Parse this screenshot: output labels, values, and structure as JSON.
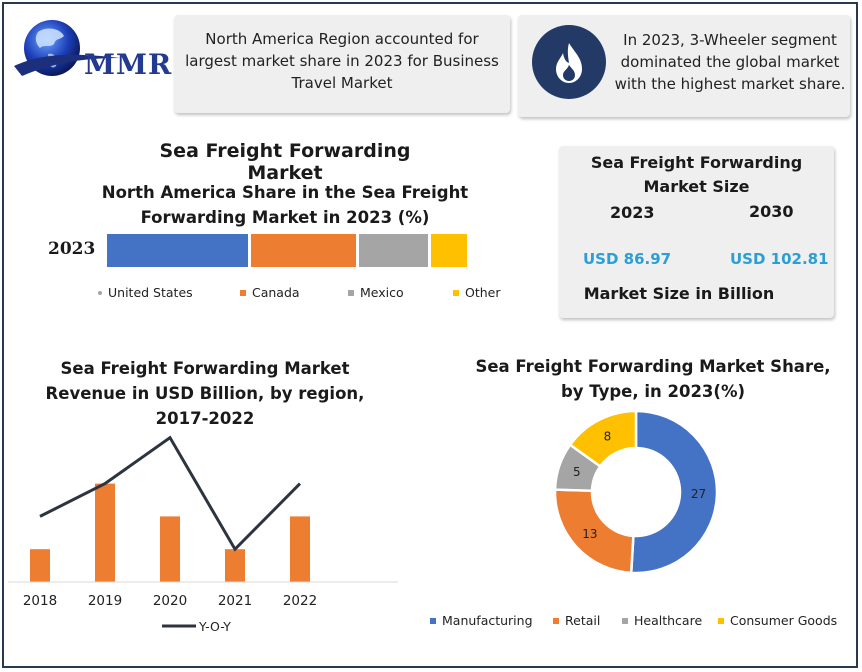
{
  "logo": {
    "text": "MMR"
  },
  "cards": {
    "north_america": "North America Region accounted for largest market share in 2023 for Business Travel Market",
    "segment": "In 2023, 3-Wheeler segment dominated the global market with the highest market share."
  },
  "main_title": "Sea Freight Forwarding  Market",
  "market_size": {
    "title": "Sea Freight Forwarding Market Size",
    "year_a": "2023",
    "year_b": "2030",
    "value_a": "USD 86.97",
    "value_b": "USD 102.81",
    "unit": "Market Size in Billion"
  },
  "colors": {
    "blue": "#4472c4",
    "orange": "#ed7d31",
    "gray": "#a5a5a5",
    "yellow": "#ffc000",
    "dark_navy": "#233a66",
    "line": "#2d3440"
  },
  "chart_data": [
    {
      "type": "bar",
      "stacked": true,
      "orientation": "horizontal",
      "title": "North America Share in the Sea Freight Forwarding Market in 2023 (%)",
      "categories": [
        "2023"
      ],
      "series": [
        {
          "name": "United States",
          "values": [
            40
          ],
          "color": "#4472c4"
        },
        {
          "name": "Canada",
          "values": [
            30
          ],
          "color": "#ed7d31"
        },
        {
          "name": "Mexico",
          "values": [
            20
          ],
          "color": "#a5a5a5"
        },
        {
          "name": "Other",
          "values": [
            10
          ],
          "color": "#ffc000"
        }
      ],
      "legend": "bottom"
    },
    {
      "type": "bar",
      "title": "Sea Freight Forwarding Market Revenue in USD Billion, by region, 2017-2022",
      "categories": [
        "2018",
        "2019",
        "2020",
        "2021",
        "2022"
      ],
      "bars": {
        "values": [
          1,
          3,
          2,
          1,
          2
        ],
        "color": "#ed7d31"
      },
      "line": {
        "name": "Y-O-Y",
        "values": [
          2,
          3,
          4.4,
          1,
          3
        ],
        "color": "#2d3440"
      },
      "ylim": [
        0,
        5
      ],
      "legend": "bottom"
    },
    {
      "type": "pie",
      "donut": true,
      "title": "Sea Freight Forwarding Market Share, by Type, in 2023(%)",
      "slices": [
        {
          "name": "Manufacturing",
          "value": 27,
          "color": "#4472c4"
        },
        {
          "name": "Retail",
          "value": 13,
          "color": "#ed7d31"
        },
        {
          "name": "Healthcare",
          "value": 5,
          "color": "#a5a5a5"
        },
        {
          "name": "Consumer Goods",
          "value": 8,
          "color": "#ffc000"
        }
      ],
      "legend": "bottom"
    }
  ]
}
